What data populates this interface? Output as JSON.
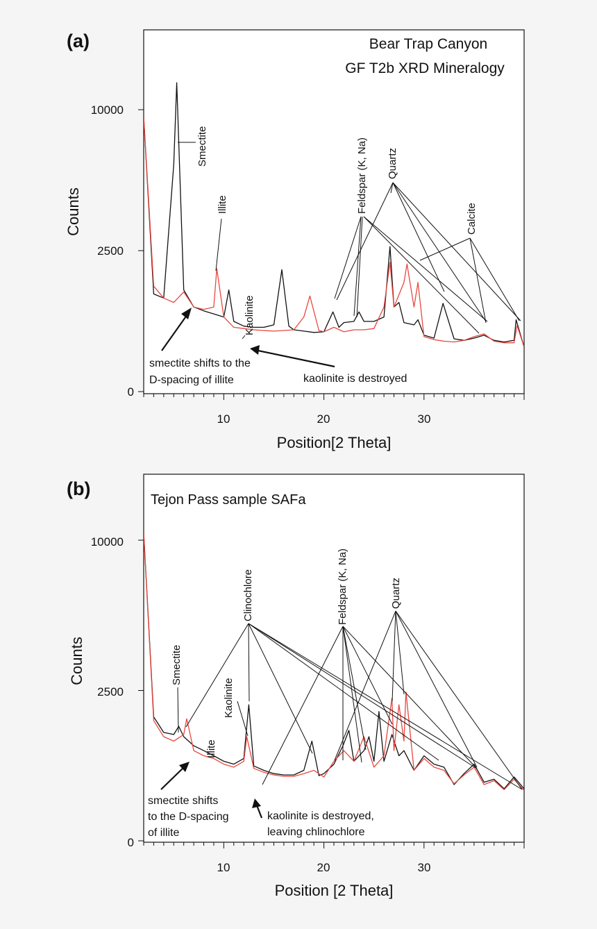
{
  "chart_data": [
    {
      "panel_label": "(a)",
      "type": "line",
      "title_lines": [
        "Bear Trap Canyon",
        "GF T2b XRD Mineralogy"
      ],
      "xlabel": "Position[2 Theta]",
      "ylabel": "Counts",
      "xlim": [
        2,
        40
      ],
      "x_ticks": [
        "10",
        "20",
        "30"
      ],
      "y_ticks": [
        "0",
        "2500",
        "10000"
      ],
      "y_scale": "square-root",
      "series_colors": [
        "#111111",
        "#e8473f"
      ],
      "annotations": [
        {
          "text": "Smectite"
        },
        {
          "text": "Illite"
        },
        {
          "text": "Kaolinite"
        },
        {
          "text": "Feldspar (K, Na)"
        },
        {
          "text": "Quartz"
        },
        {
          "text": "Calcite"
        },
        {
          "text": "smectite shifts to the"
        },
        {
          "text": "D-spacing of illite"
        },
        {
          "text": "kaolinite is destroyed"
        }
      ],
      "series": [
        {
          "color": "#111111",
          "x": [
            2,
            3,
            4,
            5,
            5.3,
            6,
            7,
            8,
            9,
            10,
            10.5,
            11,
            12,
            13,
            14,
            15,
            15.8,
            16.5,
            17,
            18,
            19,
            20,
            20.9,
            21.5,
            22,
            23,
            23.5,
            24,
            25,
            26,
            26.6,
            27,
            27.5,
            28,
            29,
            29.4,
            30,
            31,
            31.9,
            33,
            34,
            35,
            36,
            37,
            38,
            39,
            39.2,
            40
          ],
          "y": [
            9500,
            1200,
            1100,
            6500,
            12000,
            1300,
            900,
            820,
            760,
            700,
            1300,
            620,
            540,
            520,
            520,
            560,
            1870,
            540,
            480,
            460,
            440,
            450,
            800,
            520,
            600,
            620,
            800,
            620,
            620,
            700,
            2650,
            900,
            1000,
            600,
            560,
            650,
            400,
            360,
            980,
            350,
            330,
            360,
            400,
            330,
            310,
            330,
            650,
            250
          ]
        },
        {
          "color": "#e8473f",
          "x": [
            2,
            3,
            4,
            5,
            6,
            7,
            8,
            9,
            9.3,
            10,
            11,
            12,
            13,
            14,
            15,
            16,
            17,
            18,
            18.6,
            19.5,
            20,
            21,
            22,
            23,
            24,
            25,
            26,
            26.6,
            27,
            28,
            28.3,
            29,
            29.4,
            30,
            31,
            32,
            33,
            34,
            35,
            36,
            37,
            38,
            39,
            39.3,
            40
          ],
          "y": [
            9500,
            1400,
            1100,
            1000,
            1250,
            900,
            850,
            900,
            1900,
            700,
            520,
            500,
            480,
            470,
            460,
            470,
            480,
            700,
            1150,
            470,
            450,
            520,
            450,
            480,
            480,
            500,
            900,
            2100,
            900,
            1500,
            2050,
            900,
            1500,
            380,
            340,
            320,
            310,
            330,
            380,
            420,
            320,
            300,
            300,
            550,
            250
          ]
        }
      ]
    },
    {
      "panel_label": "(b)",
      "type": "line",
      "title_lines": [
        "Tejon Pass sample SAFa"
      ],
      "xlabel": "Position [2 Theta]",
      "ylabel": "Counts",
      "xlim": [
        2,
        40
      ],
      "x_ticks": [
        "10",
        "20",
        "30"
      ],
      "y_ticks": [
        "0",
        "2500",
        "10000"
      ],
      "y_scale": "square-root",
      "series_colors": [
        "#111111",
        "#e8473f"
      ],
      "annotations": [
        {
          "text": "Smectite"
        },
        {
          "text": "Illite"
        },
        {
          "text": "Kaolinite"
        },
        {
          "text": "Clinochlore"
        },
        {
          "text": "Feldspar (K, Na)"
        },
        {
          "text": "Quartz"
        },
        {
          "text": "smectite shifts"
        },
        {
          "text": "to the D-spacing"
        },
        {
          "text": "of illite"
        },
        {
          "text": "kaolinite is destroyed,"
        },
        {
          "text": "leaving chlinochlore"
        }
      ],
      "series": [
        {
          "color": "#111111",
          "x": [
            2,
            3,
            4,
            5,
            5.5,
            6,
            7,
            8,
            9,
            10,
            11,
            12,
            12.5,
            13,
            14,
            15,
            16,
            17,
            18,
            18.8,
            19.5,
            20,
            21,
            21.9,
            22.5,
            23,
            24,
            24.5,
            25,
            25.5,
            26,
            26.8,
            27.5,
            28,
            29,
            30,
            31,
            32,
            33,
            34,
            35,
            36,
            37,
            38,
            39,
            40
          ],
          "y": [
            10500,
            1700,
            1300,
            1250,
            1450,
            1200,
            1000,
            900,
            800,
            700,
            650,
            750,
            2050,
            620,
            550,
            500,
            480,
            480,
            550,
            1100,
            470,
            500,
            650,
            1000,
            1350,
            700,
            900,
            1200,
            700,
            1850,
            700,
            1250,
            800,
            900,
            550,
            800,
            650,
            600,
            350,
            500,
            650,
            380,
            420,
            300,
            450,
            300
          ]
        },
        {
          "color": "#e8473f",
          "x": [
            2,
            3,
            4,
            5,
            6,
            6.3,
            7,
            8,
            9,
            10,
            11,
            12,
            12.3,
            13,
            14,
            15,
            16,
            17,
            18,
            19,
            20,
            21,
            22,
            23,
            24,
            25,
            26,
            26.8,
            27,
            27.5,
            28,
            28.2,
            29,
            30,
            31,
            32,
            33,
            34,
            35,
            36,
            37,
            38,
            39,
            40
          ],
          "y": [
            10500,
            1600,
            1200,
            1100,
            1250,
            1650,
            900,
            800,
            750,
            650,
            600,
            700,
            1200,
            580,
            520,
            480,
            460,
            460,
            500,
            550,
            450,
            700,
            900,
            700,
            1200,
            600,
            800,
            2250,
            900,
            2050,
            1100,
            2450,
            550,
            750,
            600,
            550,
            360,
            480,
            600,
            350,
            400,
            290,
            420,
            280
          ]
        }
      ]
    }
  ]
}
